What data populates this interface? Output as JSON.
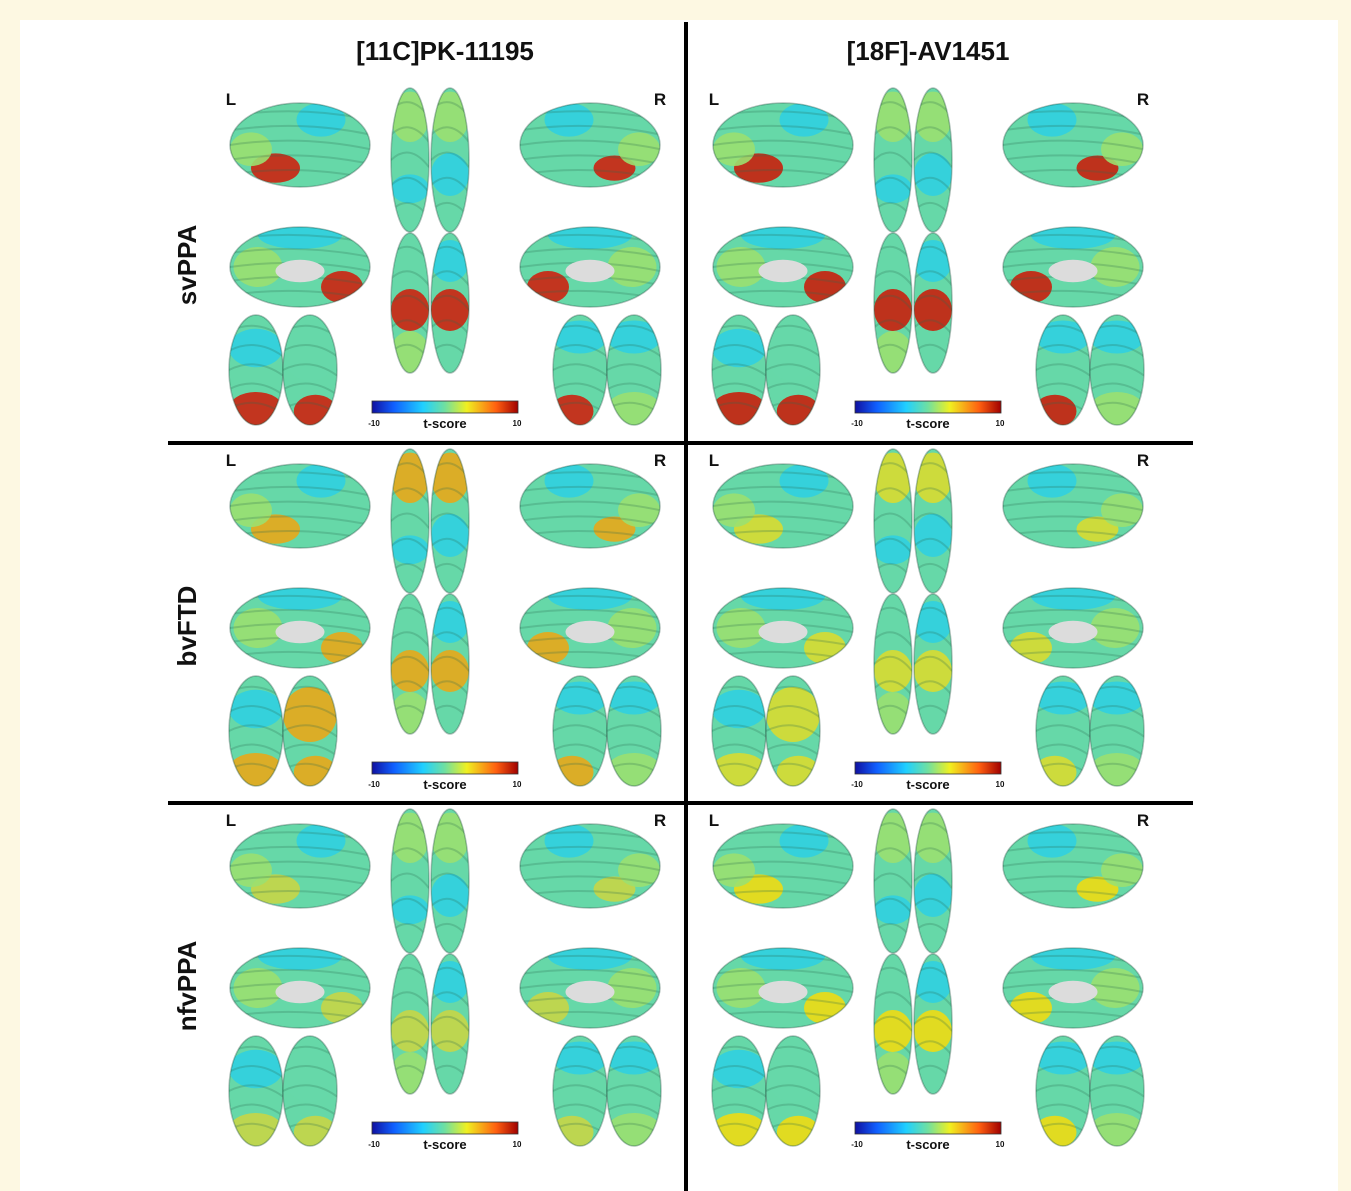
{
  "columns": [
    "[11C]PK-11195",
    "[18F]-AV1451"
  ],
  "rows": [
    "svPPA",
    "bvFTD",
    "nfvPPA"
  ],
  "side_labels": {
    "left": "L",
    "right": "R"
  },
  "colorbar": {
    "min": -10,
    "max": 10,
    "label": "t-score"
  }
}
